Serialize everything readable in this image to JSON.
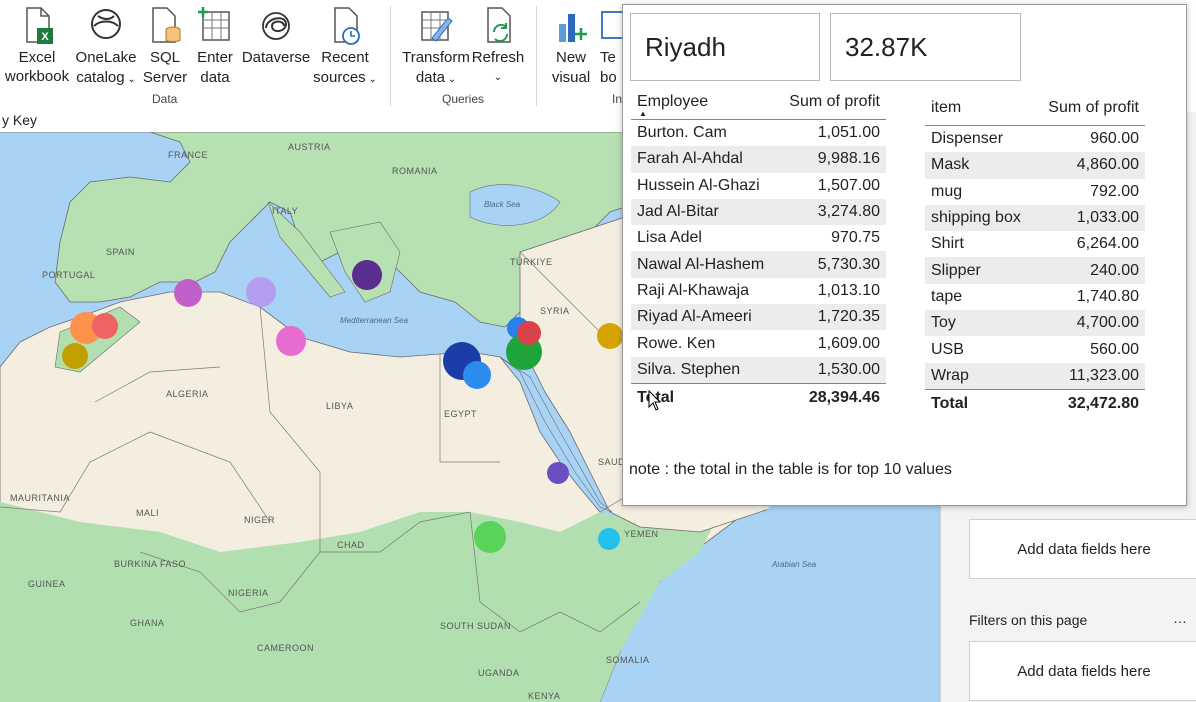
{
  "ribbon": {
    "buttons": [
      {
        "label1": "Excel",
        "label2": "workbook",
        "caret": false,
        "icon": "excel-icon"
      },
      {
        "label1": "OneLake",
        "label2": "catalog",
        "caret": true,
        "icon": "onelake-icon"
      },
      {
        "label1": "SQL",
        "label2": "Server",
        "caret": false,
        "icon": "sql-server-icon"
      },
      {
        "label1": "Enter",
        "label2": "data",
        "caret": false,
        "icon": "table-plus-icon"
      },
      {
        "label1": "Dataverse",
        "label2": "",
        "caret": false,
        "icon": "dataverse-icon"
      },
      {
        "label1": "Recent",
        "label2": "sources",
        "caret": true,
        "icon": "recent-sources-icon"
      },
      {
        "label1": "Transform",
        "label2": "data",
        "caret": true,
        "icon": "transform-icon"
      },
      {
        "label1": "Refresh",
        "label2": "",
        "caret": true,
        "icon": "refresh-icon"
      },
      {
        "label1": "New",
        "label2": "visual",
        "caret": false,
        "icon": "new-visual-icon"
      },
      {
        "label1": "Te",
        "label2": "bo",
        "caret": false,
        "icon": "text-box-icon"
      }
    ],
    "groups": {
      "data": "Data",
      "queries": "Queries",
      "insert": "In"
    }
  },
  "canvas": {
    "header_fragment": "y Key"
  },
  "map": {
    "labels": {
      "france": "FRANCE",
      "austria": "AUSTRIA",
      "romania": "ROMANIA",
      "italy": "ITALY",
      "spain": "SPAIN",
      "portugal": "PORTUGAL",
      "turkiye": "TÜRKIYE",
      "syria": "SYRIA",
      "algeria": "ALGERIA",
      "libya": "LIBYA",
      "egypt": "EGYPT",
      "saudi": "SAUD",
      "mauritania": "MAURITANIA",
      "mali": "MALI",
      "niger": "NIGER",
      "chad": "CHAD",
      "burkina": "BURKINA FASO",
      "guinea": "GUINEA",
      "ghana": "GHANA",
      "nigeria": "NIGERIA",
      "cameroon": "CAMEROON",
      "south_sudan": "SOUTH SUDAN",
      "uganda": "UGANDA",
      "kenya": "KENYA",
      "somalia": "SOMALIA",
      "yemen": "YEMEN",
      "black_sea": "Black Sea",
      "med_sea": "Mediterranean Sea",
      "arabian_sea": "Arabian Sea"
    },
    "bubble_colors": [
      "#ff914d",
      "#f06363",
      "#c0a000",
      "#c15fc9",
      "#b59ef2",
      "#e86bd0",
      "#5a2d91",
      "#1a3da8",
      "#2b8cf0",
      "#2b7fe8",
      "#d9424a",
      "#1ea53a",
      "#d4a400",
      "#6a4fc2",
      "#59d45a",
      "#22c0ec"
    ]
  },
  "pane": {
    "drop1": "Add data fields here",
    "filter_title": "Filters on this page",
    "more": "…",
    "drop2": "Add data fields here"
  },
  "tooltip": {
    "city": "Riyadh",
    "profit_card": "32.87K",
    "employee_table": {
      "headers": [
        "Employee",
        "Sum of profit"
      ],
      "rows": [
        [
          "Burton. Cam",
          "1,051.00"
        ],
        [
          "Farah Al-Ahdal",
          "9,988.16"
        ],
        [
          "Hussein Al-Ghazi",
          "1,507.00"
        ],
        [
          "Jad Al-Bitar",
          "3,274.80"
        ],
        [
          "Lisa Adel",
          "970.75"
        ],
        [
          "Nawal Al-Hashem",
          "5,730.30"
        ],
        [
          "Raji Al-Khawaja",
          "1,013.10"
        ],
        [
          "Riyad Al-Ameeri",
          "1,720.35"
        ],
        [
          "Rowe. Ken",
          "1,609.00"
        ],
        [
          "Silva. Stephen",
          "1,530.00"
        ]
      ],
      "total": [
        "Total",
        "28,394.46"
      ]
    },
    "item_table": {
      "headers": [
        "item",
        "Sum of profit"
      ],
      "rows": [
        [
          "Dispenser",
          "960.00"
        ],
        [
          "Mask",
          "4,860.00"
        ],
        [
          "mug",
          "792.00"
        ],
        [
          "shipping box",
          "1,033.00"
        ],
        [
          "Shirt",
          "6,264.00"
        ],
        [
          "Slipper",
          "240.00"
        ],
        [
          "tape",
          "1,740.80"
        ],
        [
          "Toy",
          "4,700.00"
        ],
        [
          "USB",
          "560.00"
        ],
        [
          "Wrap",
          "11,323.00"
        ]
      ],
      "total": [
        "Total",
        "32,472.80"
      ]
    },
    "note": "note : the total in the table is for top 10 values"
  }
}
